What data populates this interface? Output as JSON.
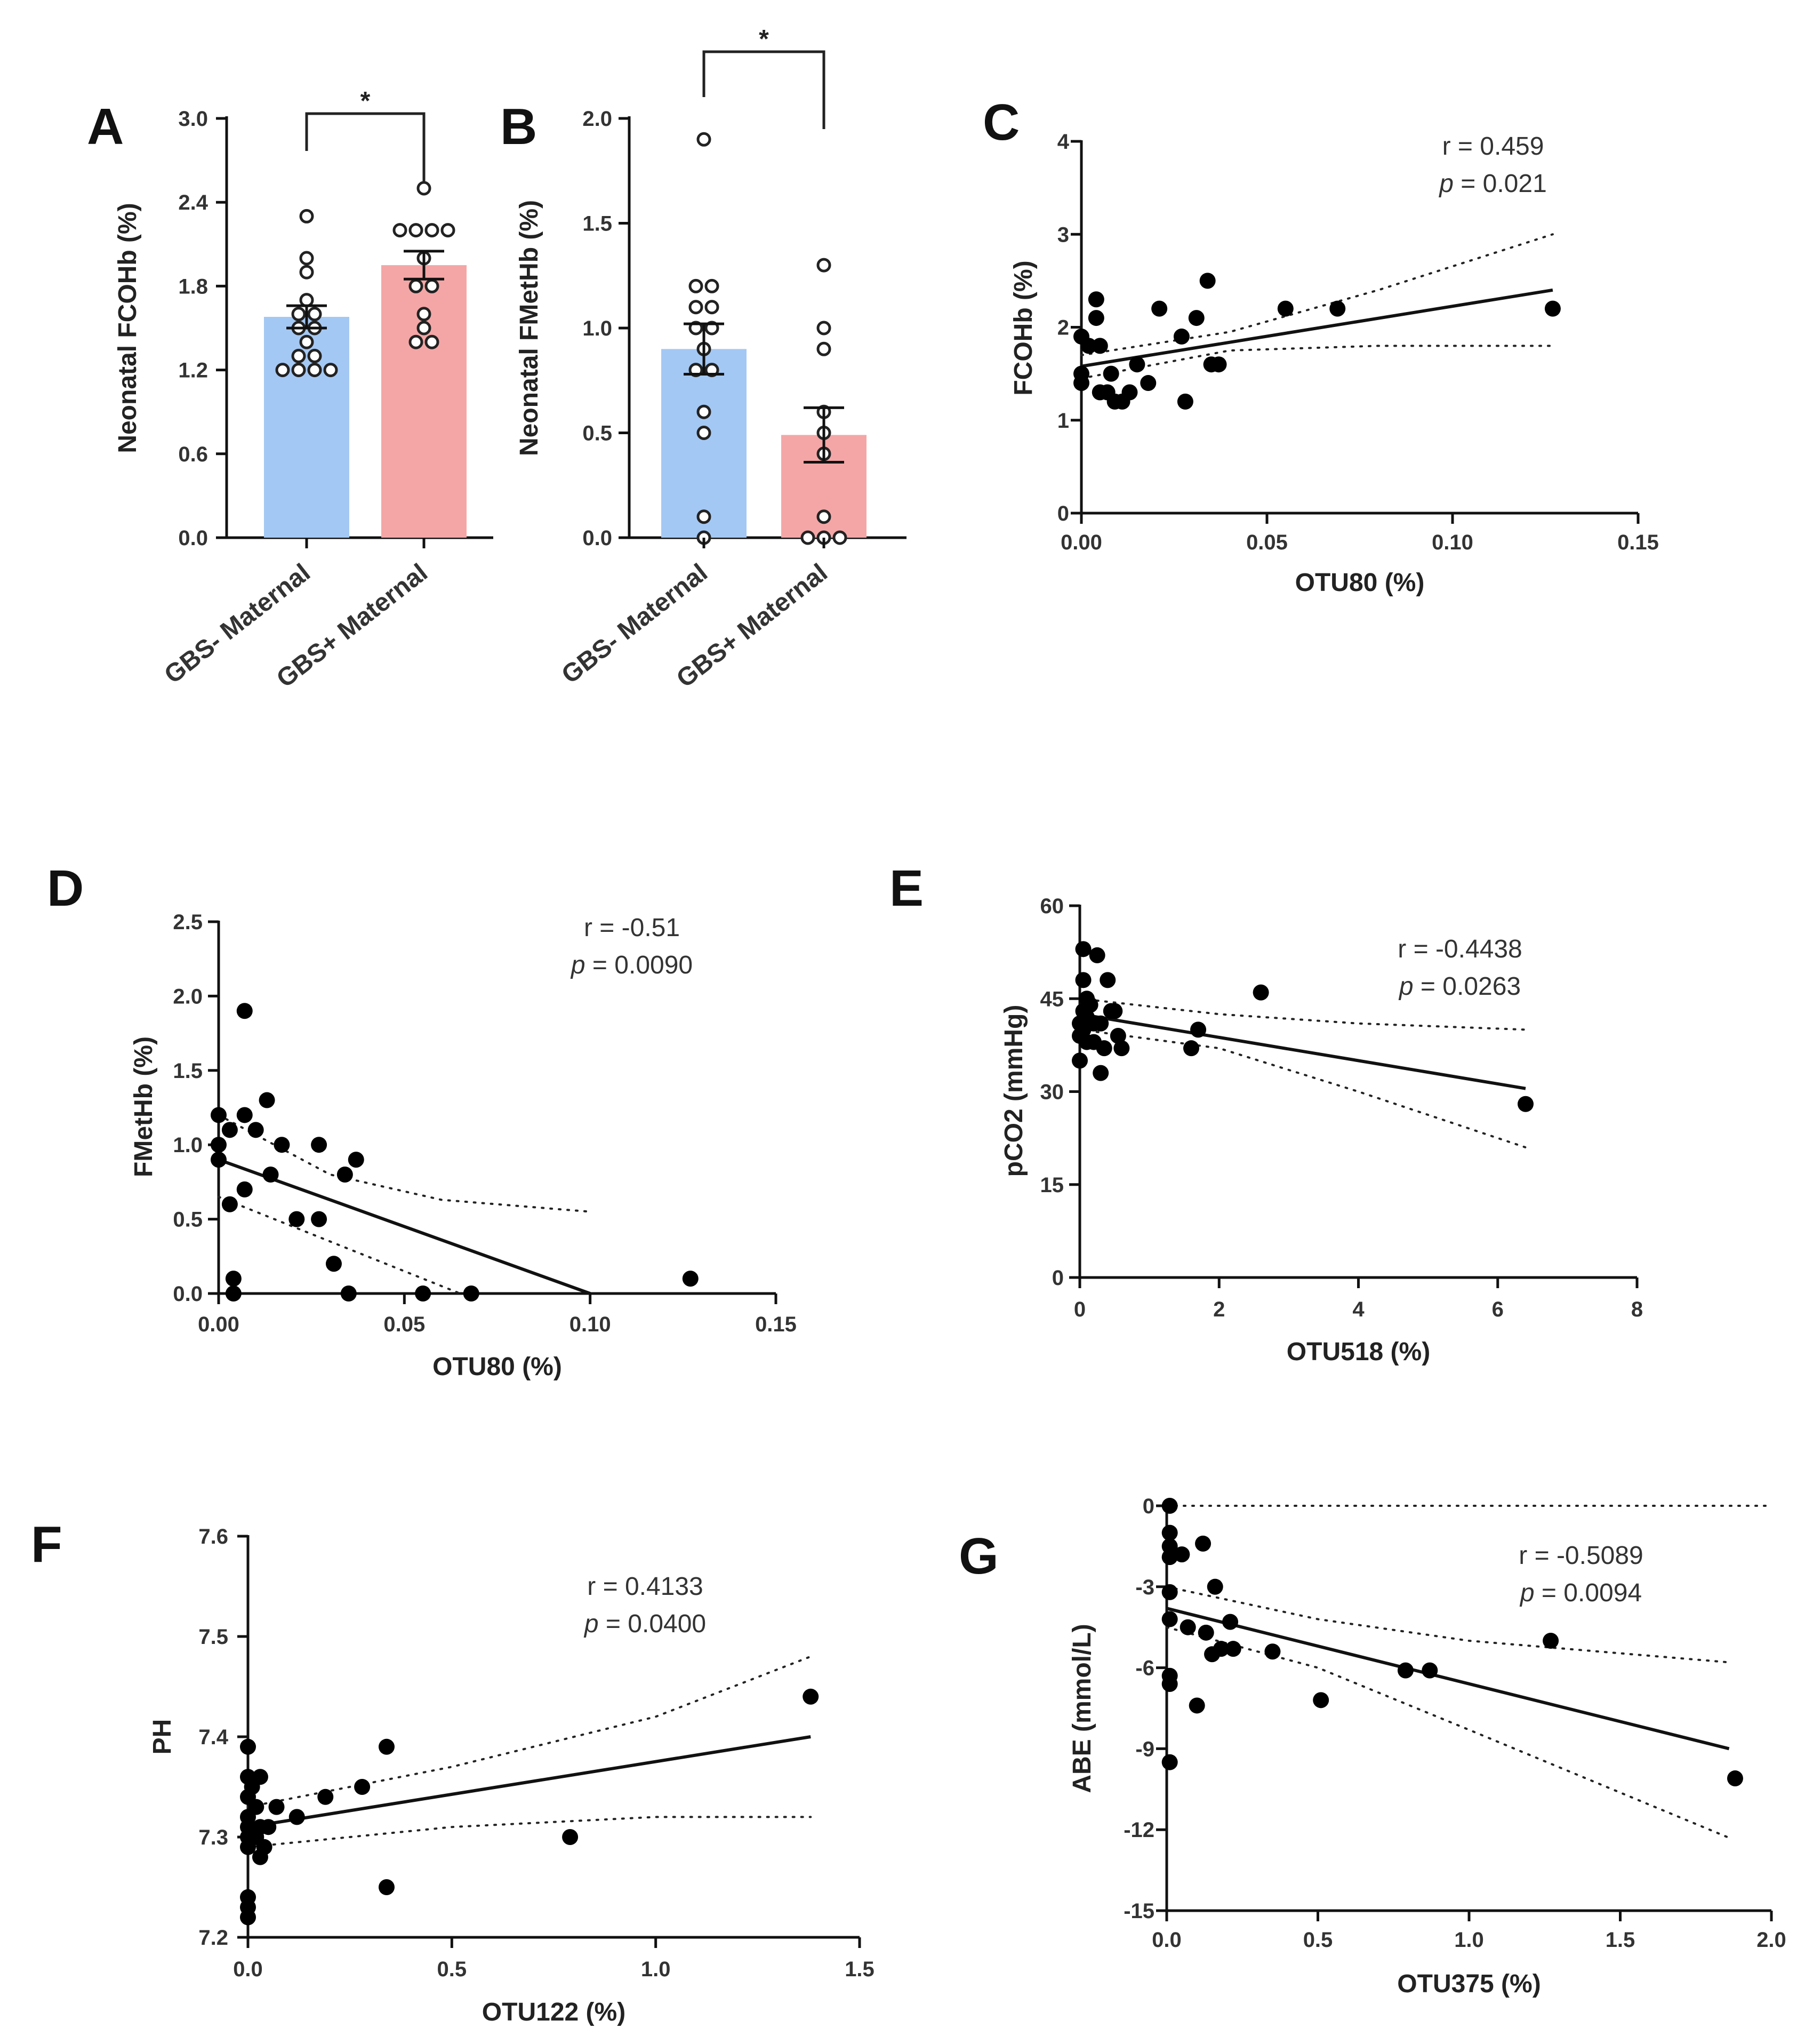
{
  "figure": {
    "panels": [
      "A",
      "B",
      "C",
      "D",
      "E",
      "F",
      "G"
    ],
    "r_prefix": "r = ",
    "p_prefix": "p",
    "p_eq": " = "
  },
  "chart_data": [
    {
      "id": "A",
      "type": "bar",
      "label": "A",
      "title": "",
      "ylabel": "Neonatal FCOHb (%)",
      "categories": [
        "GBS- Maternal",
        "GBS+ Maternal"
      ],
      "values": [
        1.58,
        1.95
      ],
      "sem": [
        0.08,
        0.1
      ],
      "colors": [
        "#a4c8f4",
        "#f4a6a6"
      ],
      "ylim": [
        0,
        3.0
      ],
      "yticks": [
        "0.0",
        "0.6",
        "1.2",
        "1.8",
        "2.4",
        "3.0"
      ],
      "points": [
        [
          2.3,
          2.0,
          1.9,
          1.7,
          1.6,
          1.6,
          1.5,
          1.4,
          1.3,
          1.3,
          1.2,
          1.2,
          1.2,
          1.2,
          1.5
        ],
        [
          2.5,
          2.2,
          2.2,
          2.2,
          2.2,
          2.0,
          1.8,
          1.8,
          1.6,
          1.5,
          1.4,
          1.4
        ]
      ],
      "significance": "*"
    },
    {
      "id": "B",
      "type": "bar",
      "label": "B",
      "title": "",
      "ylabel": "Neonatal FMetHb (%)",
      "categories": [
        "GBS- Maternal",
        "GBS+ Maternal"
      ],
      "values": [
        0.9,
        0.49
      ],
      "sem": [
        0.12,
        0.13
      ],
      "colors": [
        "#a4c8f4",
        "#f4a6a6"
      ],
      "ylim": [
        0,
        2.0
      ],
      "yticks": [
        "0.0",
        "0.5",
        "1.0",
        "1.5",
        "2.0"
      ],
      "points": [
        [
          1.9,
          1.2,
          1.2,
          1.1,
          1.1,
          1.0,
          1.0,
          0.9,
          0.8,
          0.8,
          0.6,
          0.5,
          0.1,
          0.0
        ],
        [
          1.3,
          1.0,
          0.9,
          0.6,
          0.5,
          0.4,
          0.1,
          0.0,
          0.0,
          0.0
        ]
      ],
      "significance": "*"
    },
    {
      "id": "C",
      "type": "scatter",
      "label": "C",
      "xlabel": "OTU80 (%)",
      "ylabel": "FCOHb (%)",
      "xlim": [
        0,
        0.15
      ],
      "ylim": [
        0,
        4
      ],
      "xticks": [
        "0.00",
        "0.05",
        "0.10",
        "0.15"
      ],
      "yticks": [
        "0",
        "1",
        "2",
        "3",
        "4"
      ],
      "r": "0.459",
      "p": "0.021",
      "x": [
        0,
        0,
        0,
        0.002,
        0.004,
        0.004,
        0.005,
        0.005,
        0.007,
        0.008,
        0.009,
        0.011,
        0.013,
        0.015,
        0.018,
        0.021,
        0.027,
        0.028,
        0.031,
        0.034,
        0.035,
        0.037,
        0.055,
        0.069,
        0.127
      ],
      "y": [
        1.9,
        1.5,
        1.4,
        1.8,
        2.3,
        2.1,
        1.3,
        1.8,
        1.3,
        1.5,
        1.2,
        1.2,
        1.3,
        1.6,
        1.4,
        2.2,
        1.9,
        1.2,
        2.1,
        2.5,
        1.6,
        1.6,
        2.2,
        2.2,
        2.2
      ],
      "fit": {
        "x": [
          0,
          0.127
        ],
        "y": [
          1.58,
          2.4
        ]
      },
      "ci_upper": [
        [
          0,
          1.7
        ],
        [
          0.04,
          1.95
        ],
        [
          0.08,
          2.4
        ],
        [
          0.127,
          3.0
        ]
      ],
      "ci_lower": [
        [
          0,
          1.45
        ],
        [
          0.04,
          1.75
        ],
        [
          0.08,
          1.8
        ],
        [
          0.127,
          1.8
        ]
      ]
    },
    {
      "id": "D",
      "type": "scatter",
      "label": "D",
      "xlabel": "OTU80 (%)",
      "ylabel": "FMetHb (%)",
      "xlim": [
        0,
        0.15
      ],
      "ylim": [
        0,
        2.5
      ],
      "xticks": [
        "0.00",
        "0.05",
        "0.10",
        "0.15"
      ],
      "yticks": [
        "0.0",
        "0.5",
        "1.0",
        "1.5",
        "2.0",
        "2.5"
      ],
      "r": "-0.51",
      "p": "0.0090",
      "x": [
        0,
        0,
        0,
        0.003,
        0.003,
        0.004,
        0.004,
        0.007,
        0.007,
        0.007,
        0.01,
        0.013,
        0.014,
        0.017,
        0.021,
        0.027,
        0.027,
        0.031,
        0.034,
        0.035,
        0.037,
        0.055,
        0.068,
        0.127
      ],
      "y": [
        1.2,
        1.0,
        0.9,
        1.1,
        0.6,
        0.1,
        0.0,
        1.9,
        1.2,
        0.7,
        1.1,
        1.3,
        0.8,
        1.0,
        0.5,
        1.0,
        0.5,
        0.2,
        0.8,
        0.0,
        0.9,
        0.0,
        0.0,
        0.1
      ],
      "fit": {
        "x": [
          0,
          0.1
        ],
        "y": [
          0.9,
          0.0
        ]
      },
      "ci_upper": [
        [
          0,
          1.2
        ],
        [
          0.03,
          0.8
        ],
        [
          0.06,
          0.63
        ],
        [
          0.1,
          0.55
        ]
      ],
      "ci_lower": [
        [
          0,
          0.65
        ],
        [
          0.03,
          0.35
        ],
        [
          0.06,
          0.05
        ],
        [
          0.065,
          0.0
        ]
      ]
    },
    {
      "id": "E",
      "type": "scatter",
      "label": "E",
      "xlabel": "OTU518 (%)",
      "ylabel": "pCO2 (mmHg)",
      "xlim": [
        0,
        8
      ],
      "ylim": [
        0,
        60
      ],
      "xticks": [
        "0",
        "2",
        "4",
        "6",
        "8"
      ],
      "yticks": [
        "0",
        "15",
        "30",
        "45",
        "60"
      ],
      "r": "-0.4438",
      "p": "0.0263",
      "x": [
        0,
        0,
        0,
        0.05,
        0.05,
        0.05,
        0.05,
        0.1,
        0.1,
        0.1,
        0.15,
        0.2,
        0.2,
        0.25,
        0.3,
        0.3,
        0.35,
        0.4,
        0.45,
        0.5,
        0.55,
        0.6,
        1.6,
        1.7,
        2.6,
        6.4
      ],
      "y": [
        35,
        39,
        41,
        53,
        48,
        43,
        40,
        45,
        42,
        38,
        44,
        41,
        38,
        52,
        33,
        41,
        37,
        48,
        43,
        43,
        39,
        37,
        37,
        40,
        46,
        28
      ],
      "fit": {
        "x": [
          0,
          6.4
        ],
        "y": [
          42.5,
          30.5
        ]
      },
      "ci_upper": [
        [
          0,
          45
        ],
        [
          2,
          42.5
        ],
        [
          4,
          41
        ],
        [
          6.4,
          40
        ]
      ],
      "ci_lower": [
        [
          0,
          40
        ],
        [
          2,
          37
        ],
        [
          4,
          30
        ],
        [
          6.4,
          21
        ]
      ]
    },
    {
      "id": "F",
      "type": "scatter",
      "label": "F",
      "xlabel": "OTU122 (%)",
      "ylabel": "PH",
      "xlim": [
        0,
        1.5
      ],
      "ylim": [
        7.2,
        7.6
      ],
      "xticks": [
        "0.0",
        "0.5",
        "1.0",
        "1.5"
      ],
      "yticks": [
        "7.2",
        "7.3",
        "7.4",
        "7.5",
        "7.6"
      ],
      "r": "0.4133",
      "p": "0.0400",
      "x": [
        0,
        0,
        0,
        0,
        0,
        0,
        0,
        0,
        0,
        0,
        0.01,
        0.02,
        0.02,
        0.03,
        0.03,
        0.03,
        0.04,
        0.05,
        0.07,
        0.12,
        0.19,
        0.28,
        0.34,
        0.34,
        0.79,
        1.38
      ],
      "y": [
        7.39,
        7.36,
        7.34,
        7.32,
        7.3,
        7.29,
        7.24,
        7.23,
        7.22,
        7.31,
        7.35,
        7.33,
        7.3,
        7.28,
        7.36,
        7.31,
        7.29,
        7.31,
        7.33,
        7.32,
        7.34,
        7.35,
        7.39,
        7.25,
        7.3,
        7.44
      ],
      "fit": {
        "x": [
          0,
          1.38
        ],
        "y": [
          7.31,
          7.4
        ]
      },
      "ci_upper": [
        [
          0,
          7.33
        ],
        [
          0.5,
          7.37
        ],
        [
          1,
          7.42
        ],
        [
          1.38,
          7.48
        ]
      ],
      "ci_lower": [
        [
          0,
          7.29
        ],
        [
          0.5,
          7.31
        ],
        [
          1,
          7.32
        ],
        [
          1.38,
          7.32
        ]
      ]
    },
    {
      "id": "G",
      "type": "scatter",
      "label": "G",
      "xlabel": "OTU375 (%)",
      "ylabel": "ABE (mmol/L)",
      "xlim": [
        0,
        2.0
      ],
      "ylim": [
        -15,
        0
      ],
      "xticks": [
        "0.0",
        "0.5",
        "1.0",
        "1.5",
        "2.0"
      ],
      "yticks": [
        "0",
        "-3",
        "-6",
        "-9",
        "-12",
        "-15"
      ],
      "r": "-0.5089",
      "p": "0.0094",
      "x": [
        0.01,
        0.01,
        0.01,
        0.01,
        0.01,
        0.01,
        0.01,
        0.01,
        0.01,
        0.05,
        0.07,
        0.1,
        0.12,
        0.13,
        0.15,
        0.16,
        0.18,
        0.21,
        0.22,
        0.35,
        0.51,
        0.79,
        0.87,
        1.27,
        1.88
      ],
      "y": [
        0,
        -1,
        -1.5,
        -3.2,
        -4.2,
        -6.3,
        -6.6,
        -9.5,
        -1.9,
        -1.8,
        -4.5,
        -7.4,
        -1.4,
        -4.7,
        -5.5,
        -3,
        -5.3,
        -4.3,
        -5.3,
        -5.4,
        -7.2,
        -6.1,
        -6.1,
        -5,
        -10.1
      ],
      "fit": {
        "x": [
          0,
          1.86
        ],
        "y": [
          -3.8,
          -9.0
        ]
      },
      "ci_upper": [
        [
          0,
          -3.0
        ],
        [
          0.5,
          -4.2
        ],
        [
          1,
          -5.0
        ],
        [
          1.86,
          -5.8
        ]
      ],
      "ci_lower": [
        [
          0,
          -4.5
        ],
        [
          0.5,
          -6.0
        ],
        [
          1,
          -8.3
        ],
        [
          1.86,
          -12.3
        ]
      ],
      "zero_ref": true
    }
  ]
}
